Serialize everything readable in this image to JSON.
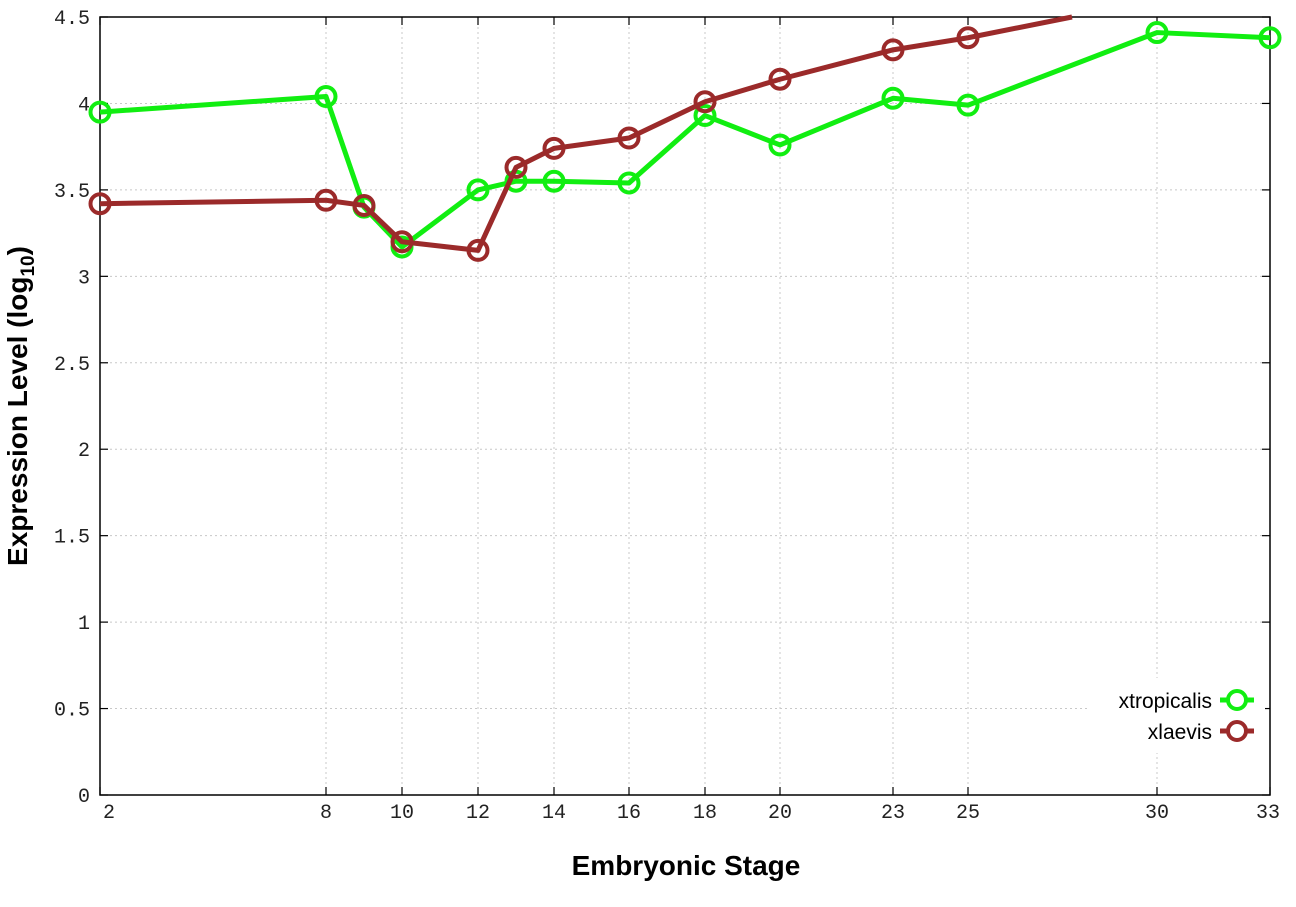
{
  "chart_data": {
    "type": "line",
    "xlabel": "Embryonic Stage",
    "ylabel_main": "Expression Level (log",
    "ylabel_sub": "10",
    "ylabel_close": ")",
    "ylim": [
      0,
      4.5
    ],
    "yticks": [
      "0",
      "0.5",
      "1",
      "1.5",
      "2",
      "2.5",
      "3",
      "3.5",
      "4",
      "4.5"
    ],
    "xticks": [
      "2",
      "8",
      "10",
      "12",
      "14",
      "16",
      "18",
      "20",
      "23",
      "25",
      "30",
      "33"
    ],
    "grid": true,
    "legend_position": "bottom-right",
    "series": [
      {
        "name": "xtropicalis",
        "color": "#11ee11",
        "points": [
          {
            "stage": "2",
            "value": 3.95
          },
          {
            "stage": "8",
            "value": 4.04
          },
          {
            "stage": "9",
            "value": 3.4
          },
          {
            "stage": "10",
            "value": 3.17
          },
          {
            "stage": "12",
            "value": 3.5
          },
          {
            "stage": "13",
            "value": 3.55
          },
          {
            "stage": "14",
            "value": 3.55
          },
          {
            "stage": "16",
            "value": 3.54
          },
          {
            "stage": "18",
            "value": 3.93
          },
          {
            "stage": "20",
            "value": 3.76
          },
          {
            "stage": "23",
            "value": 4.03
          },
          {
            "stage": "25",
            "value": 3.99
          },
          {
            "stage": "30",
            "value": 4.41
          },
          {
            "stage": "33",
            "value": 4.38
          }
        ]
      },
      {
        "name": "xlaevis",
        "color": "#9b2a2a",
        "points": [
          {
            "stage": "2",
            "value": 3.42
          },
          {
            "stage": "8",
            "value": 3.44
          },
          {
            "stage": "9",
            "value": 3.41
          },
          {
            "stage": "10",
            "value": 3.2
          },
          {
            "stage": "12",
            "value": 3.15
          },
          {
            "stage": "13",
            "value": 3.63
          },
          {
            "stage": "14",
            "value": 3.74
          },
          {
            "stage": "16",
            "value": 3.8
          },
          {
            "stage": "18",
            "value": 4.01
          },
          {
            "stage": "20",
            "value": 4.14
          },
          {
            "stage": "23",
            "value": 4.31
          },
          {
            "stage": "25",
            "value": 4.38
          }
        ],
        "trend_end": {
          "stage": "27.5",
          "value": 4.5
        }
      }
    ]
  }
}
